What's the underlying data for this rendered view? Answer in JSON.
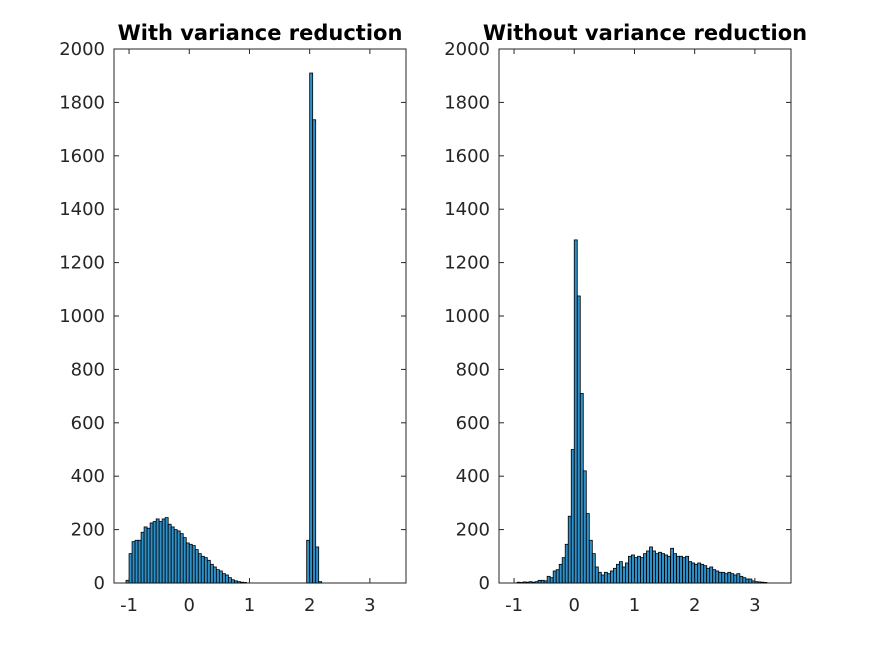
{
  "chart_data": [
    {
      "type": "bar",
      "title": "With variance reduction",
      "xlim": [
        -1.25,
        3.6
      ],
      "ylim": [
        0,
        2000
      ],
      "xticks": [
        -1,
        0,
        1,
        2,
        3
      ],
      "xtick_labels": [
        "-1",
        "0",
        "1",
        "2",
        "3"
      ],
      "yticks": [
        0,
        200,
        400,
        600,
        800,
        1000,
        1200,
        1400,
        1600,
        1800,
        2000
      ],
      "ytick_labels": [
        "0",
        "200",
        "400",
        "600",
        "800",
        "1000",
        "1200",
        "1400",
        "1600",
        "1800",
        "2000"
      ],
      "grid": false,
      "bin_width": 0.05,
      "bins": [
        [
          -1.05,
          10
        ],
        [
          -1.0,
          110
        ],
        [
          -0.95,
          155
        ],
        [
          -0.9,
          160
        ],
        [
          -0.85,
          160
        ],
        [
          -0.8,
          190
        ],
        [
          -0.75,
          210
        ],
        [
          -0.7,
          205
        ],
        [
          -0.65,
          225
        ],
        [
          -0.6,
          230
        ],
        [
          -0.55,
          240
        ],
        [
          -0.5,
          230
        ],
        [
          -0.45,
          240
        ],
        [
          -0.4,
          245
        ],
        [
          -0.35,
          220
        ],
        [
          -0.3,
          210
        ],
        [
          -0.25,
          200
        ],
        [
          -0.2,
          195
        ],
        [
          -0.15,
          185
        ],
        [
          -0.1,
          170
        ],
        [
          -0.05,
          150
        ],
        [
          0.0,
          145
        ],
        [
          0.05,
          140
        ],
        [
          0.1,
          125
        ],
        [
          0.15,
          110
        ],
        [
          0.2,
          100
        ],
        [
          0.25,
          95
        ],
        [
          0.3,
          85
        ],
        [
          0.35,
          70
        ],
        [
          0.4,
          60
        ],
        [
          0.45,
          50
        ],
        [
          0.5,
          45
        ],
        [
          0.55,
          35
        ],
        [
          0.6,
          30
        ],
        [
          0.65,
          20
        ],
        [
          0.7,
          12
        ],
        [
          0.75,
          8
        ],
        [
          0.8,
          5
        ],
        [
          0.85,
          3
        ],
        [
          0.9,
          2
        ],
        [
          1.95,
          160
        ],
        [
          2.0,
          1910
        ],
        [
          2.05,
          1735
        ],
        [
          2.1,
          135
        ],
        [
          2.15,
          5
        ]
      ]
    },
    {
      "type": "bar",
      "title": "Without variance reduction",
      "xlim": [
        -1.25,
        3.6
      ],
      "ylim": [
        0,
        2000
      ],
      "xticks": [
        -1,
        0,
        1,
        2,
        3
      ],
      "xtick_labels": [
        "-1",
        "0",
        "1",
        "2",
        "3"
      ],
      "yticks": [
        0,
        200,
        400,
        600,
        800,
        1000,
        1200,
        1400,
        1600,
        1800,
        2000
      ],
      "ytick_labels": [
        "0",
        "200",
        "400",
        "600",
        "800",
        "1000",
        "1200",
        "1400",
        "1600",
        "1800",
        "2000"
      ],
      "grid": false,
      "bin_width": 0.05,
      "bins": [
        [
          -0.95,
          3
        ],
        [
          -0.9,
          2
        ],
        [
          -0.85,
          4
        ],
        [
          -0.8,
          3
        ],
        [
          -0.75,
          5
        ],
        [
          -0.7,
          3
        ],
        [
          -0.65,
          5
        ],
        [
          -0.6,
          10
        ],
        [
          -0.55,
          10
        ],
        [
          -0.5,
          8
        ],
        [
          -0.45,
          25
        ],
        [
          -0.4,
          20
        ],
        [
          -0.35,
          45
        ],
        [
          -0.3,
          50
        ],
        [
          -0.25,
          70
        ],
        [
          -0.2,
          95
        ],
        [
          -0.15,
          145
        ],
        [
          -0.1,
          250
        ],
        [
          -0.05,
          500
        ],
        [
          0.0,
          1285
        ],
        [
          0.05,
          1075
        ],
        [
          0.1,
          710
        ],
        [
          0.15,
          420
        ],
        [
          0.2,
          260
        ],
        [
          0.25,
          160
        ],
        [
          0.3,
          110
        ],
        [
          0.35,
          60
        ],
        [
          0.4,
          40
        ],
        [
          0.45,
          30
        ],
        [
          0.5,
          40
        ],
        [
          0.55,
          35
        ],
        [
          0.6,
          45
        ],
        [
          0.65,
          55
        ],
        [
          0.7,
          70
        ],
        [
          0.75,
          80
        ],
        [
          0.8,
          60
        ],
        [
          0.85,
          75
        ],
        [
          0.9,
          100
        ],
        [
          0.95,
          105
        ],
        [
          1.0,
          95
        ],
        [
          1.05,
          100
        ],
        [
          1.1,
          95
        ],
        [
          1.15,
          110
        ],
        [
          1.2,
          120
        ],
        [
          1.25,
          135
        ],
        [
          1.3,
          120
        ],
        [
          1.35,
          110
        ],
        [
          1.4,
          115
        ],
        [
          1.45,
          110
        ],
        [
          1.5,
          105
        ],
        [
          1.55,
          100
        ],
        [
          1.6,
          130
        ],
        [
          1.65,
          110
        ],
        [
          1.7,
          100
        ],
        [
          1.75,
          100
        ],
        [
          1.8,
          95
        ],
        [
          1.85,
          100
        ],
        [
          1.9,
          80
        ],
        [
          1.95,
          75
        ],
        [
          2.0,
          70
        ],
        [
          2.05,
          75
        ],
        [
          2.1,
          70
        ],
        [
          2.15,
          65
        ],
        [
          2.2,
          55
        ],
        [
          2.25,
          60
        ],
        [
          2.3,
          50
        ],
        [
          2.35,
          45
        ],
        [
          2.4,
          40
        ],
        [
          2.45,
          40
        ],
        [
          2.5,
          35
        ],
        [
          2.55,
          40
        ],
        [
          2.6,
          35
        ],
        [
          2.65,
          30
        ],
        [
          2.7,
          35
        ],
        [
          2.75,
          25
        ],
        [
          2.8,
          20
        ],
        [
          2.85,
          15
        ],
        [
          2.9,
          15
        ],
        [
          2.95,
          8
        ],
        [
          3.0,
          5
        ],
        [
          3.05,
          4
        ],
        [
          3.1,
          3
        ],
        [
          3.15,
          2
        ]
      ]
    }
  ]
}
